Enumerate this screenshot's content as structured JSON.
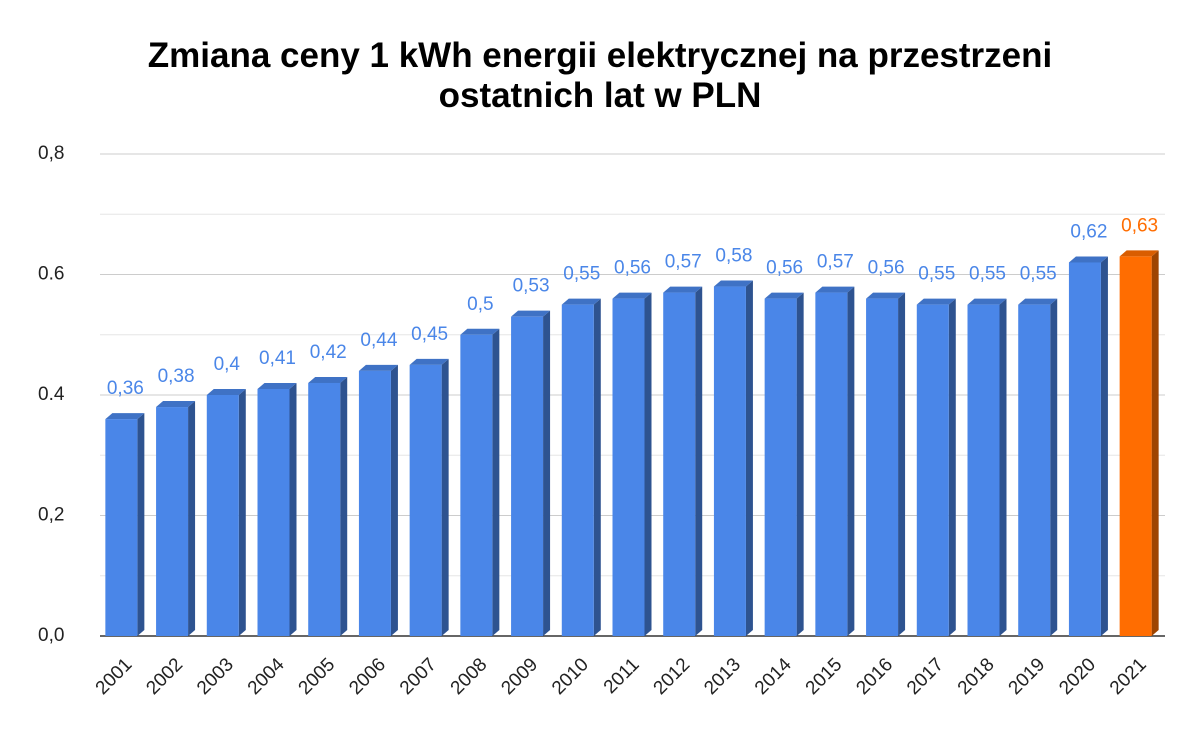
{
  "chart_data": {
    "type": "bar3d",
    "title": "Zmiana ceny 1 kWh energii elektrycznej na przestrzeni ostatnich lat w PLN",
    "categories": [
      "2001",
      "2002",
      "2003",
      "2004",
      "2005",
      "2006",
      "2007",
      "2008",
      "2009",
      "2010",
      "2011",
      "2012",
      "2013",
      "2014",
      "2015",
      "2016",
      "2017",
      "2018",
      "2019",
      "2020",
      "2021"
    ],
    "values": [
      0.36,
      0.38,
      0.4,
      0.41,
      0.42,
      0.44,
      0.45,
      0.5,
      0.53,
      0.55,
      0.56,
      0.57,
      0.58,
      0.56,
      0.57,
      0.56,
      0.55,
      0.55,
      0.55,
      0.62,
      0.63
    ],
    "value_labels": [
      "0,36",
      "0,38",
      "0,4",
      "0,41",
      "0,42",
      "0,44",
      "0,45",
      "0,5",
      "0,53",
      "0,55",
      "0,56",
      "0,57",
      "0,58",
      "0,56",
      "0,57",
      "0,56",
      "0,55",
      "0,55",
      "0,55",
      "0,62",
      "0,63"
    ],
    "colors": [
      "#4a86e8",
      "#4a86e8",
      "#4a86e8",
      "#4a86e8",
      "#4a86e8",
      "#4a86e8",
      "#4a86e8",
      "#4a86e8",
      "#4a86e8",
      "#4a86e8",
      "#4a86e8",
      "#4a86e8",
      "#4a86e8",
      "#4a86e8",
      "#4a86e8",
      "#4a86e8",
      "#4a86e8",
      "#4a86e8",
      "#4a86e8",
      "#4a86e8",
      "#ff6d01"
    ],
    "ylim": [
      0,
      0.8
    ],
    "yticks": [
      {
        "value": 0,
        "label": "0,0"
      },
      {
        "value": 0.2,
        "label": "0,2"
      },
      {
        "value": 0.4,
        "label": "0.4"
      },
      {
        "value": 0.6,
        "label": "0.6"
      },
      {
        "value": 0.8,
        "label": "0,8"
      }
    ],
    "grid": true,
    "minor_grid": true
  }
}
